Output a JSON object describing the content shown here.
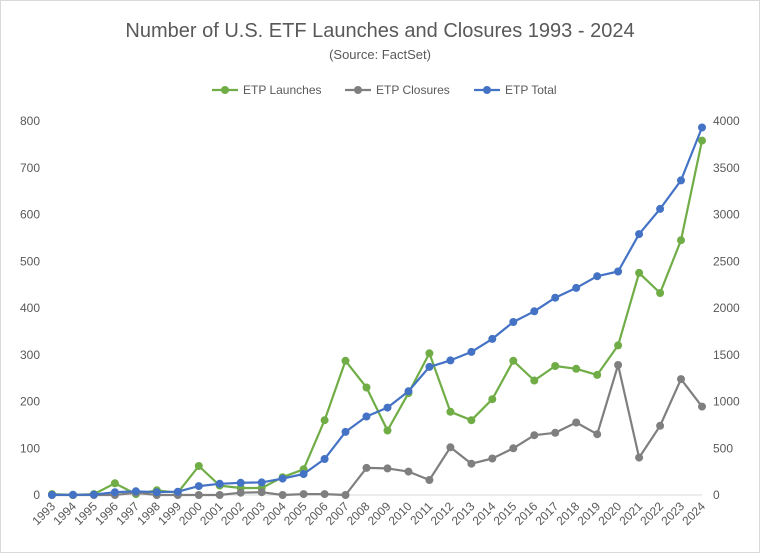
{
  "chart_data": {
    "type": "line",
    "title": "Number of U.S. ETF Launches and Closures 1993 - 2024",
    "subtitle": "(Source: FactSet)",
    "categories": [
      "1993",
      "1994",
      "1995",
      "1996",
      "1997",
      "1998",
      "1999",
      "2000",
      "2001",
      "2002",
      "2003",
      "2004",
      "2005",
      "2006",
      "2007",
      "2008",
      "2009",
      "2010",
      "2011",
      "2012",
      "2013",
      "2014",
      "2015",
      "2016",
      "2017",
      "2018",
      "2019",
      "2020",
      "2021",
      "2022",
      "2023",
      "2024"
    ],
    "left_axis": {
      "ylim": [
        0,
        800
      ],
      "ticks": [
        "0",
        "100",
        "200",
        "300",
        "400",
        "500",
        "600",
        "700",
        "800"
      ]
    },
    "right_axis": {
      "ylim": [
        0,
        4000
      ],
      "ticks": [
        "0",
        "500",
        "1000",
        "1500",
        "2000",
        "2500",
        "3000",
        "3500",
        "4000"
      ]
    },
    "legend_position": "top",
    "grid": "horizontal-none",
    "series": [
      {
        "name": "ETP Launches",
        "axis": "left",
        "color": "#70ad47",
        "values": [
          2,
          0,
          2,
          25,
          2,
          10,
          5,
          62,
          20,
          15,
          15,
          38,
          55,
          160,
          287,
          230,
          138,
          218,
          303,
          178,
          160,
          205,
          287,
          245,
          276,
          270,
          257,
          320,
          475,
          432,
          545,
          758
        ]
      },
      {
        "name": "ETP Closures",
        "axis": "left",
        "color": "#7f7f7f",
        "values": [
          0,
          0,
          0,
          0,
          5,
          0,
          0,
          0,
          0,
          5,
          6,
          0,
          2,
          2,
          0,
          58,
          57,
          50,
          32,
          102,
          67,
          78,
          100,
          128,
          133,
          155,
          130,
          278,
          80,
          148,
          248,
          189
        ]
      },
      {
        "name": "ETP Total",
        "axis": "right",
        "color": "#4472c4",
        "values": [
          1,
          2,
          4,
          30,
          40,
          30,
          35,
          95,
          120,
          130,
          135,
          175,
          225,
          385,
          675,
          840,
          935,
          1110,
          1370,
          1440,
          1530,
          1670,
          1850,
          1965,
          2110,
          2215,
          2340,
          2390,
          2790,
          3060,
          3365,
          3930
        ]
      }
    ]
  }
}
